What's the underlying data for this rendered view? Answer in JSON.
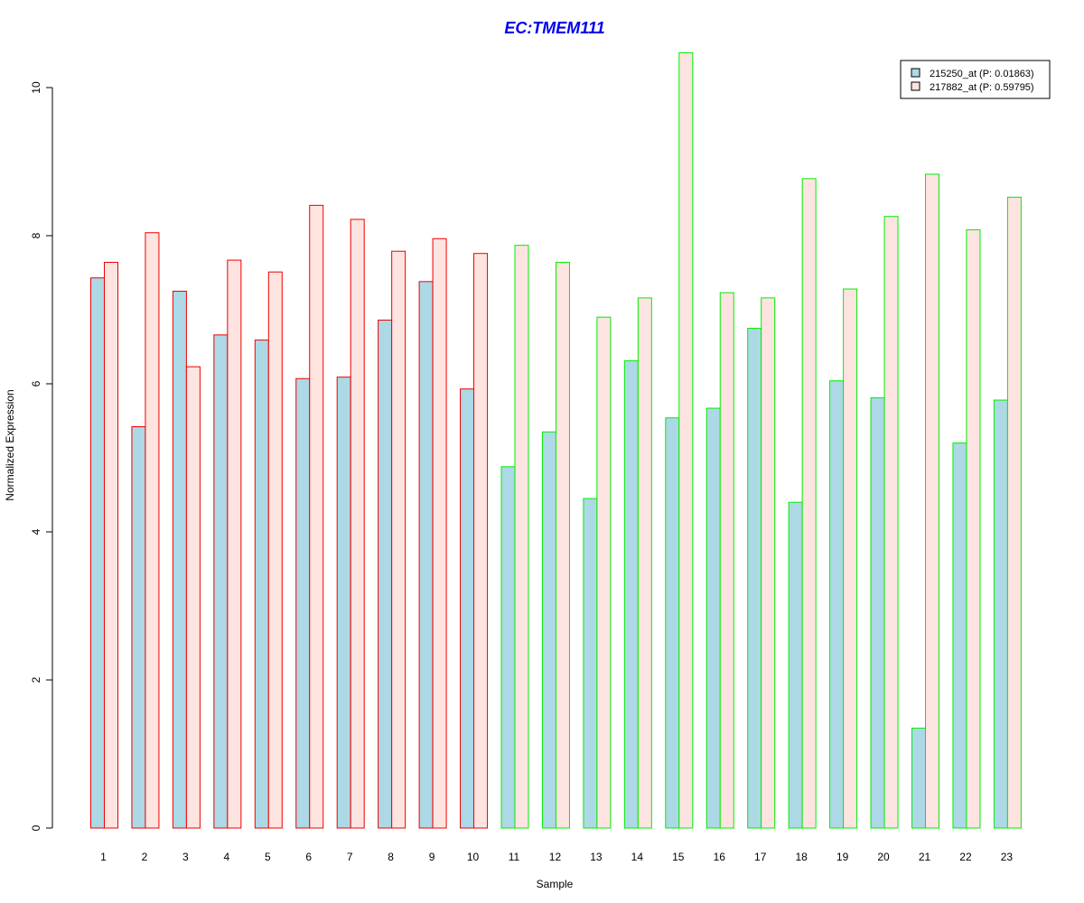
{
  "chart_data": {
    "type": "bar",
    "title": "EC:TMEM111",
    "title_color": "#0000ee",
    "xlabel": "Sample",
    "ylabel": "Normalized Expression",
    "ylim": [
      0,
      10
    ],
    "yticks": [
      0,
      2,
      4,
      6,
      8,
      10
    ],
    "grid": false,
    "legend_position": "top-right",
    "categories": [
      "1",
      "2",
      "3",
      "4",
      "5",
      "6",
      "7",
      "8",
      "9",
      "10",
      "11",
      "12",
      "13",
      "14",
      "15",
      "16",
      "17",
      "18",
      "19",
      "20",
      "21",
      "22",
      "23"
    ],
    "group_border_colors": [
      "#ee0000",
      "#ee0000",
      "#ee0000",
      "#ee0000",
      "#ee0000",
      "#ee0000",
      "#ee0000",
      "#ee0000",
      "#ee0000",
      "#ee0000",
      "#00ee00",
      "#00ee00",
      "#00ee00",
      "#00ee00",
      "#00ee00",
      "#00ee00",
      "#00ee00",
      "#00ee00",
      "#00ee00",
      "#00ee00",
      "#00ee00",
      "#00ee00",
      "#00ee00"
    ],
    "series": [
      {
        "name": "215250_at (P: 0.01863)",
        "color": "#add8e6",
        "values": [
          7.43,
          5.42,
          7.25,
          6.66,
          6.59,
          6.07,
          6.09,
          6.86,
          7.38,
          5.93,
          4.88,
          5.35,
          4.45,
          6.31,
          5.54,
          5.67,
          6.75,
          4.4,
          6.04,
          5.81,
          1.35,
          5.2,
          5.78
        ]
      },
      {
        "name": "217882_at (P: 0.59795)",
        "color": "#fde4e0",
        "values": [
          7.64,
          8.04,
          6.23,
          7.67,
          7.51,
          8.41,
          8.22,
          7.79,
          7.96,
          7.76,
          7.87,
          7.64,
          6.9,
          7.16,
          10.47,
          7.23,
          7.16,
          8.77,
          7.28,
          8.26,
          8.83,
          8.08,
          8.52
        ]
      }
    ]
  }
}
